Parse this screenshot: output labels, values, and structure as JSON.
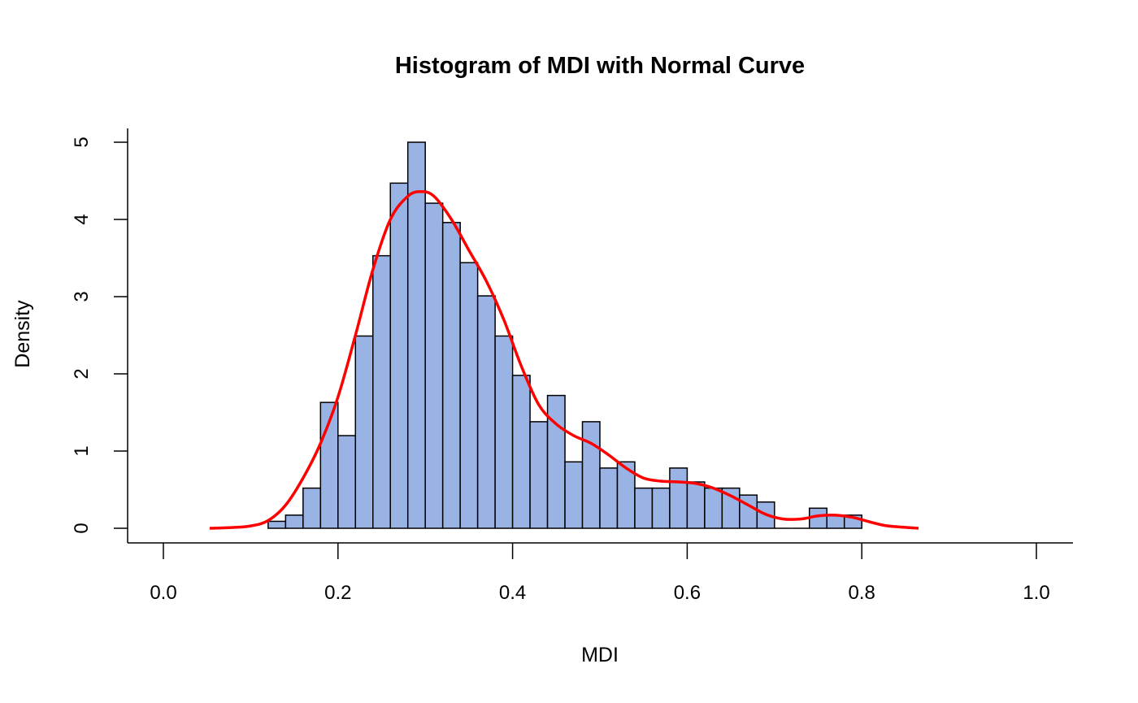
{
  "chart_data": {
    "type": "bar",
    "title": "Histogram of MDI with Normal Curve",
    "xlabel": "MDI",
    "ylabel": "Density",
    "xlim": [
      0,
      1
    ],
    "ylim": [
      0,
      5
    ],
    "x_ticks": [
      "0.0",
      "0.2",
      "0.4",
      "0.6",
      "0.8",
      "1.0"
    ],
    "y_ticks": [
      "0",
      "1",
      "2",
      "3",
      "4",
      "5"
    ],
    "grid": false,
    "bar_color": "#9AB3E5",
    "curve_color": "#FF0000",
    "bin_width": 0.02,
    "bin_start": 0.12,
    "bars": [
      0.09,
      0.17,
      0.52,
      1.63,
      1.2,
      2.49,
      3.53,
      4.47,
      5.0,
      4.21,
      3.96,
      3.44,
      3.01,
      2.49,
      1.98,
      1.38,
      1.72,
      0.86,
      1.38,
      0.78,
      0.86,
      0.52,
      0.52,
      0.78,
      0.6,
      0.52,
      0.52,
      0.43,
      0.34,
      0,
      0,
      0.26,
      0.17,
      0.17
    ],
    "curve": {
      "x": [
        0.053,
        0.08,
        0.1,
        0.12,
        0.14,
        0.16,
        0.18,
        0.2,
        0.22,
        0.24,
        0.26,
        0.28,
        0.295,
        0.31,
        0.33,
        0.35,
        0.37,
        0.39,
        0.41,
        0.43,
        0.45,
        0.47,
        0.49,
        0.51,
        0.53,
        0.55,
        0.57,
        0.59,
        0.61,
        0.63,
        0.65,
        0.67,
        0.69,
        0.71,
        0.73,
        0.75,
        0.77,
        0.79,
        0.81,
        0.83,
        0.865
      ],
      "y": [
        0.0,
        0.01,
        0.03,
        0.1,
        0.3,
        0.65,
        1.1,
        1.7,
        2.5,
        3.35,
        4.0,
        4.3,
        4.36,
        4.3,
        4.0,
        3.6,
        3.2,
        2.7,
        2.1,
        1.6,
        1.35,
        1.2,
        1.1,
        0.95,
        0.78,
        0.65,
        0.61,
        0.6,
        0.58,
        0.52,
        0.42,
        0.3,
        0.18,
        0.12,
        0.12,
        0.16,
        0.17,
        0.14,
        0.08,
        0.03,
        0.0
      ]
    }
  }
}
